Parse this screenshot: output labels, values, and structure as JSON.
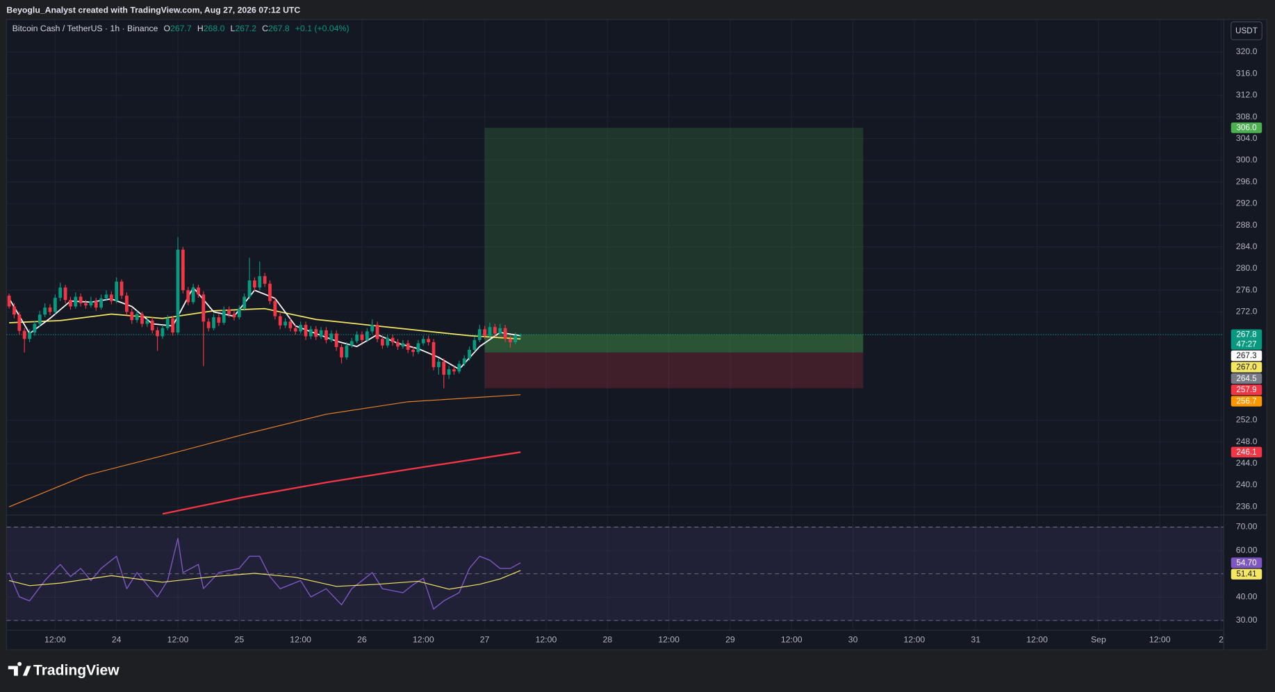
{
  "header": {
    "text": "Beyoglu_Analyst created with TradingView.com, Aug 27, 2026 07:12 UTC"
  },
  "legend": {
    "symbol": "Bitcoin Cash / TetherUS · 1h · Binance",
    "fields": [
      {
        "key": "O",
        "value": "267.7"
      },
      {
        "key": "H",
        "value": "268.0"
      },
      {
        "key": "L",
        "value": "267.2"
      },
      {
        "key": "C",
        "value": "267.8"
      }
    ],
    "change": "+0.1 (+0.04%)"
  },
  "currency": "USDT",
  "brand": "TradingView",
  "chart_data": [
    {
      "type": "candlestick",
      "up_color": "#089981",
      "down_color": "#f23645",
      "xlim": [
        -0.5,
        237.5
      ],
      "xticks": [
        {
          "value": 9,
          "label": "12:00"
        },
        {
          "value": 21,
          "label": "24"
        },
        {
          "value": 33,
          "label": "12:00"
        },
        {
          "value": 45,
          "label": "25"
        },
        {
          "value": 57,
          "label": "12:00"
        },
        {
          "value": 69,
          "label": "26"
        },
        {
          "value": 81,
          "label": "12:00"
        },
        {
          "value": 93,
          "label": "27"
        },
        {
          "value": 105,
          "label": "12:00"
        },
        {
          "value": 117,
          "label": "28"
        },
        {
          "value": 129,
          "label": "12:00"
        },
        {
          "value": 141,
          "label": "29"
        },
        {
          "value": 153,
          "label": "12:00"
        },
        {
          "value": 165,
          "label": "30"
        },
        {
          "value": 177,
          "label": "12:00"
        },
        {
          "value": 189,
          "label": "31"
        },
        {
          "value": 201,
          "label": "12:00"
        },
        {
          "value": 213,
          "label": "Sep"
        },
        {
          "value": 225,
          "label": "12:00"
        },
        {
          "value": 237,
          "label": "2"
        }
      ],
      "ylim": [
        234.5,
        326
      ],
      "yticks": [
        {
          "value": 236,
          "label": "236.0"
        },
        {
          "value": 240,
          "label": "240.0"
        },
        {
          "value": 244,
          "label": "244.0"
        },
        {
          "value": 248,
          "label": "248.0"
        },
        {
          "value": 252,
          "label": "252.0"
        },
        {
          "value": 272,
          "label": "272.0"
        },
        {
          "value": 276,
          "label": "276.0"
        },
        {
          "value": 280,
          "label": "280.0"
        },
        {
          "value": 284,
          "label": "284.0"
        },
        {
          "value": 288,
          "label": "288.0"
        },
        {
          "value": 292,
          "label": "292.0"
        },
        {
          "value": 296,
          "label": "296.0"
        },
        {
          "value": 300,
          "label": "300.0"
        },
        {
          "value": 304,
          "label": "304.0"
        },
        {
          "value": 308,
          "label": "308.0"
        },
        {
          "value": 312,
          "label": "312.0"
        },
        {
          "value": 316,
          "label": "316.0"
        },
        {
          "value": 320,
          "label": "320.0"
        }
      ],
      "grid": true,
      "ohlc": [
        [
          275.0,
          275.4,
          272.6,
          273.0
        ],
        [
          273.0,
          273.6,
          270.8,
          271.5
        ],
        [
          271.5,
          272.0,
          267.8,
          268.5
        ],
        [
          268.5,
          269.0,
          264.5,
          267.0
        ],
        [
          267.0,
          268.8,
          266.4,
          268.2
        ],
        [
          268.2,
          270.4,
          267.6,
          269.8
        ],
        [
          269.8,
          272.2,
          269.2,
          271.5
        ],
        [
          271.5,
          273.6,
          271.0,
          272.8
        ],
        [
          272.8,
          273.4,
          271.4,
          272.0
        ],
        [
          272.0,
          275.2,
          271.6,
          274.6
        ],
        [
          274.6,
          277.4,
          274.0,
          276.5
        ],
        [
          276.5,
          277.0,
          273.6,
          274.2
        ],
        [
          274.2,
          274.8,
          272.4,
          273.0
        ],
        [
          273.0,
          275.6,
          272.6,
          274.8
        ],
        [
          274.8,
          275.4,
          273.0,
          273.6
        ],
        [
          273.6,
          274.2,
          272.6,
          273.2
        ],
        [
          273.2,
          274.8,
          272.8,
          274.0
        ],
        [
          274.0,
          274.6,
          272.2,
          272.8
        ],
        [
          272.8,
          275.2,
          272.4,
          274.5
        ],
        [
          274.5,
          276.0,
          274.0,
          275.2
        ],
        [
          275.2,
          275.8,
          273.4,
          274.0
        ],
        [
          274.0,
          278.4,
          273.6,
          277.6
        ],
        [
          277.6,
          278.0,
          274.4,
          275.0
        ],
        [
          275.0,
          275.6,
          271.4,
          272.0
        ],
        [
          272.0,
          272.6,
          269.8,
          270.5
        ],
        [
          270.5,
          272.2,
          270.0,
          271.6
        ],
        [
          271.6,
          272.0,
          269.2,
          269.8
        ],
        [
          269.8,
          271.0,
          269.2,
          270.4
        ],
        [
          270.4,
          271.0,
          268.0,
          268.6
        ],
        [
          268.6,
          269.2,
          264.8,
          267.5
        ],
        [
          267.5,
          269.6,
          267.0,
          269.0
        ],
        [
          269.0,
          271.4,
          268.6,
          270.8
        ],
        [
          270.8,
          271.2,
          267.6,
          268.2
        ],
        [
          268.2,
          285.8,
          267.8,
          283.5
        ],
        [
          283.5,
          284.0,
          275.4,
          276.0
        ],
        [
          276.0,
          276.6,
          273.2,
          273.8
        ],
        [
          273.8,
          277.2,
          273.4,
          276.5
        ],
        [
          276.5,
          277.0,
          274.6,
          275.2
        ],
        [
          275.2,
          275.8,
          262.0,
          270.2
        ],
        [
          270.2,
          270.8,
          268.4,
          269.0
        ],
        [
          269.0,
          271.6,
          268.6,
          271.0
        ],
        [
          271.0,
          271.6,
          269.4,
          270.0
        ],
        [
          270.0,
          273.0,
          269.6,
          272.4
        ],
        [
          272.4,
          273.0,
          271.0,
          271.6
        ],
        [
          271.6,
          272.2,
          270.4,
          271.0
        ],
        [
          271.0,
          273.2,
          270.6,
          272.6
        ],
        [
          272.6,
          275.4,
          272.2,
          274.8
        ],
        [
          274.8,
          282.0,
          274.4,
          277.8
        ],
        [
          277.8,
          278.4,
          275.8,
          276.5
        ],
        [
          276.5,
          281.3,
          276.0,
          278.6
        ],
        [
          278.6,
          279.2,
          276.6,
          277.2
        ],
        [
          277.2,
          277.8,
          273.4,
          274.0
        ],
        [
          274.0,
          274.6,
          270.6,
          271.2
        ],
        [
          271.2,
          271.8,
          268.8,
          269.5
        ],
        [
          269.5,
          270.8,
          269.0,
          270.2
        ],
        [
          270.2,
          270.8,
          268.4,
          269.0
        ],
        [
          269.0,
          269.6,
          267.8,
          268.4
        ],
        [
          268.4,
          270.2,
          268.0,
          269.6
        ],
        [
          269.6,
          270.2,
          266.8,
          267.5
        ],
        [
          267.5,
          269.4,
          267.0,
          268.8
        ],
        [
          268.8,
          269.4,
          266.8,
          267.4
        ],
        [
          267.4,
          269.2,
          267.0,
          268.6
        ],
        [
          268.6,
          269.2,
          266.2,
          266.8
        ],
        [
          266.8,
          268.6,
          266.4,
          268.0
        ],
        [
          268.0,
          268.6,
          264.8,
          265.5
        ],
        [
          265.5,
          266.0,
          262.5,
          263.6
        ],
        [
          263.6,
          266.4,
          263.2,
          265.8
        ],
        [
          265.8,
          267.2,
          265.4,
          266.6
        ],
        [
          266.6,
          268.4,
          266.2,
          267.8
        ],
        [
          267.8,
          268.4,
          266.2,
          266.8
        ],
        [
          266.8,
          269.0,
          266.4,
          268.4
        ],
        [
          268.4,
          270.6,
          268.0,
          269.6
        ],
        [
          269.6,
          270.2,
          266.4,
          267.0
        ],
        [
          267.0,
          267.6,
          265.2,
          265.8
        ],
        [
          265.8,
          267.8,
          265.4,
          267.2
        ],
        [
          267.2,
          267.8,
          265.8,
          266.4
        ],
        [
          266.4,
          267.0,
          265.0,
          265.6
        ],
        [
          265.6,
          266.8,
          265.2,
          266.2
        ],
        [
          266.2,
          266.8,
          264.4,
          265.0
        ],
        [
          265.0,
          265.6,
          263.8,
          264.6
        ],
        [
          264.6,
          266.8,
          264.2,
          266.2
        ],
        [
          266.2,
          267.6,
          265.8,
          267.0
        ],
        [
          267.0,
          267.6,
          265.8,
          266.4
        ],
        [
          266.4,
          267.0,
          261.2,
          261.8
        ],
        [
          261.8,
          263.4,
          260.4,
          262.8
        ],
        [
          262.8,
          263.4,
          257.9,
          260.4
        ],
        [
          260.4,
          262.0,
          259.6,
          261.4
        ],
        [
          261.4,
          262.0,
          260.4,
          261.0
        ],
        [
          261.0,
          263.0,
          260.6,
          262.4
        ],
        [
          262.4,
          264.0,
          262.0,
          263.4
        ],
        [
          263.4,
          265.6,
          263.0,
          265.0
        ],
        [
          265.0,
          267.4,
          264.6,
          266.8
        ],
        [
          266.8,
          269.6,
          266.4,
          268.8
        ],
        [
          268.8,
          269.4,
          267.0,
          267.6
        ],
        [
          267.6,
          270.0,
          267.2,
          269.2
        ],
        [
          269.2,
          269.8,
          267.4,
          268.0
        ],
        [
          268.0,
          269.8,
          267.6,
          269.0
        ],
        [
          269.0,
          269.6,
          266.4,
          267.0
        ],
        [
          267.0,
          267.6,
          265.4,
          266.4
        ],
        [
          266.4,
          268.2,
          266.0,
          267.7
        ],
        [
          267.7,
          268.0,
          267.2,
          267.8
        ]
      ],
      "series": [
        {
          "color": "#e8822a",
          "width": 1,
          "x": [
            0,
            15,
            32,
            46,
            62,
            78,
            100
          ],
          "values": [
            236.0,
            241.8,
            245.9,
            249.4,
            253.1,
            255.4,
            256.7
          ]
        },
        {
          "color": "#f23645",
          "width": 2,
          "x": [
            30,
            46,
            62,
            78,
            100
          ],
          "values": [
            234.7,
            237.8,
            240.5,
            242.9,
            246.1
          ]
        },
        {
          "color": "#f5e663",
          "width": 1.5,
          "x": [
            0,
            10,
            20,
            30,
            40,
            50,
            60,
            70,
            80,
            90,
            100
          ],
          "values": [
            270.0,
            270.4,
            271.6,
            270.8,
            272.2,
            272.6,
            270.6,
            269.6,
            268.6,
            267.6,
            267.0
          ]
        },
        {
          "color": "#ffffff",
          "width": 1.5,
          "x": [
            0,
            4,
            8,
            12,
            16,
            20,
            24,
            28,
            32,
            36,
            40,
            44,
            48,
            52,
            56,
            60,
            64,
            68,
            72,
            76,
            80,
            84,
            88,
            92,
            96,
            100
          ],
          "values": [
            274.5,
            268.0,
            270.8,
            274.0,
            273.8,
            274.4,
            273.0,
            269.8,
            269.4,
            276.5,
            272.0,
            271.2,
            276.0,
            274.5,
            269.4,
            268.0,
            266.6,
            265.6,
            267.8,
            266.2,
            265.2,
            263.6,
            261.4,
            265.6,
            268.2,
            267.6
          ]
        }
      ],
      "position": {
        "start": 93,
        "end": 167,
        "entry": 264.5,
        "target": 306,
        "stop": 257.9
      },
      "price_tags": [
        {
          "value": 306,
          "label": "306.0",
          "color": "#4caf50",
          "text_color": "#ffffff"
        },
        {
          "value": 267.8,
          "label": "267.8",
          "sublabel": "47:27",
          "color": "#089981",
          "text_color": "#ffffff"
        },
        {
          "value": 267.3,
          "label": "267.3",
          "color": "#ffffff",
          "text_color": "#131722"
        },
        {
          "value": 267,
          "label": "267.0",
          "color": "#f5e663",
          "text_color": "#131722"
        },
        {
          "value": 264.5,
          "label": "264.5",
          "color": "#787b86",
          "text_color": "#ffffff"
        },
        {
          "value": 257.9,
          "label": "257.9",
          "color": "#f23645",
          "text_color": "#ffffff"
        },
        {
          "value": 256.7,
          "label": "256.7",
          "color": "#ff9800",
          "text_color": "#ffffff"
        },
        {
          "value": 246.1,
          "label": "246.1",
          "color": "#f23645",
          "text_color": "#ffffff"
        }
      ]
    },
    {
      "type": "line",
      "xlim": [
        -0.5,
        237.5
      ],
      "ylim": [
        25.8,
        75.2
      ],
      "yticks": [
        {
          "value": 30,
          "label": "30.00"
        },
        {
          "value": 40,
          "label": "40.00"
        },
        {
          "value": 60,
          "label": "60.00"
        },
        {
          "value": 70,
          "label": "70.00"
        }
      ],
      "band": [
        30,
        70
      ],
      "levels": [
        70,
        50,
        30
      ],
      "series": [
        {
          "color": "#7e57c2",
          "width": 1.2,
          "x": [
            0,
            2,
            4,
            7,
            10,
            12,
            14,
            16,
            18,
            21,
            23,
            25,
            27,
            29,
            31,
            33,
            34,
            37,
            38,
            41,
            45,
            47,
            49,
            51,
            53,
            57,
            59,
            62,
            65,
            67,
            71,
            73,
            77,
            79,
            81,
            83,
            85,
            88,
            90,
            92,
            94,
            96,
            98,
            100
          ],
          "values": [
            50.5,
            40.1,
            38.4,
            47.1,
            54.0,
            48.8,
            52.3,
            47.1,
            52.3,
            57.5,
            43.6,
            50.5,
            45.3,
            40.1,
            47.1,
            65.2,
            50.5,
            54.0,
            43.6,
            50.5,
            52.3,
            57.5,
            57.5,
            48.8,
            43.6,
            47.1,
            40.1,
            43.6,
            36.7,
            43.6,
            50.5,
            43.6,
            41.9,
            45.3,
            48.1,
            34.9,
            38.4,
            41.9,
            52.3,
            57.5,
            55.8,
            52.3,
            52.3,
            54.7
          ]
        },
        {
          "color": "#f5e663",
          "width": 1,
          "x": [
            0,
            4,
            10,
            20,
            30,
            40,
            48,
            56,
            64,
            72,
            80,
            86,
            92,
            96,
            100
          ],
          "values": [
            47.1,
            44.9,
            46.0,
            49.2,
            46.4,
            48.8,
            50.2,
            48.5,
            44.6,
            45.5,
            46.8,
            43.4,
            45.5,
            47.8,
            51.41
          ]
        }
      ],
      "price_tags": [
        {
          "value": 54.7,
          "label": "54.70",
          "color": "#7e57c2",
          "text_color": "#ffffff"
        },
        {
          "value": 51.41,
          "label": "51.41",
          "color": "#f5e663",
          "text_color": "#131722"
        }
      ]
    }
  ]
}
